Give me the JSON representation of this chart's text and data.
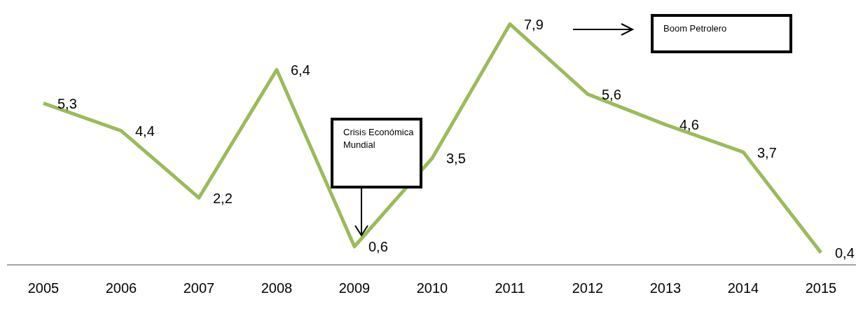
{
  "chart_data": {
    "type": "line",
    "categories": [
      "2005",
      "2006",
      "2007",
      "2008",
      "2009",
      "2010",
      "2011",
      "2012",
      "2013",
      "2014",
      "2015"
    ],
    "series": [
      {
        "color": "#9bbb59",
        "values": [
          5.3,
          4.4,
          2.2,
          6.4,
          0.6,
          3.5,
          7.9,
          5.6,
          4.6,
          3.7,
          0.4
        ],
        "value_labels": [
          "5,3",
          "4,4",
          "2,2",
          "6,4",
          "0,6",
          "3,5",
          "7,9",
          "5,6",
          "4,6",
          "3,7",
          "0,4"
        ]
      }
    ],
    "tick_labels": "x",
    "grid": false,
    "legend": false,
    "marker": "none",
    "line_style": "solid",
    "annotations": [
      "Crisis Económica Mundial",
      "Boom Petrolero"
    ]
  }
}
